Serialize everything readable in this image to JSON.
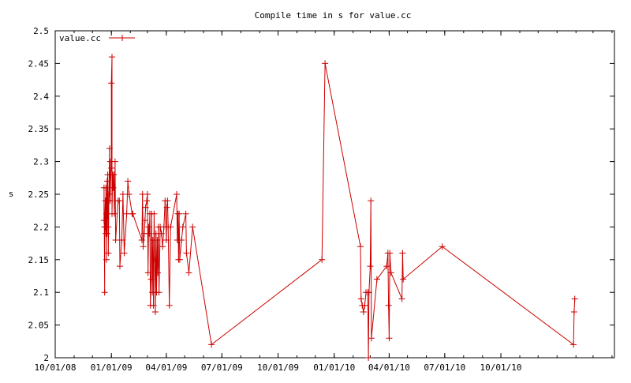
{
  "chart_data": {
    "type": "line",
    "title": "Compile time in s for value.cc",
    "xlabel": "",
    "ylabel": "s",
    "ylim": [
      2.0,
      2.5
    ],
    "xlim": [
      "2008-10-01",
      "2011-04-05"
    ],
    "x_tick_labels": [
      "10/01/08",
      "01/01/09",
      "04/01/09",
      "07/01/09",
      "10/01/09",
      "01/01/10",
      "04/01/10",
      "07/01/10",
      "10/01/10"
    ],
    "x_tick_dates": [
      "2008-10-01",
      "2009-01-01",
      "2009-04-01",
      "2009-07-01",
      "2009-10-01",
      "2010-01-01",
      "2010-04-01",
      "2010-07-01",
      "2010-10-01"
    ],
    "y_ticks": [
      2.0,
      2.05,
      2.1,
      2.15,
      2.2,
      2.25,
      2.3,
      2.35,
      2.4,
      2.45,
      2.5
    ],
    "y_tick_labels": [
      "2",
      "2.05",
      "2.1",
      "2.15",
      "2.2",
      "2.25",
      "2.3",
      "2.35",
      "2.4",
      "2.45",
      "2.5"
    ],
    "legend_position": "top-left",
    "grid": false,
    "series": [
      {
        "name": "value.cc",
        "color": "#cc0000",
        "marker": "plus",
        "points": [
          [
            "2008-12-20",
            2.21
          ],
          [
            "2008-12-20",
            2.26
          ],
          [
            "2008-12-21",
            2.1
          ],
          [
            "2008-12-21",
            2.2
          ],
          [
            "2008-12-22",
            2.24
          ],
          [
            "2008-12-22",
            2.2
          ],
          [
            "2008-12-23",
            2.19
          ],
          [
            "2008-12-23",
            2.26
          ],
          [
            "2008-12-24",
            2.15
          ],
          [
            "2008-12-24",
            2.22
          ],
          [
            "2008-12-25",
            2.27
          ],
          [
            "2008-12-25",
            2.19
          ],
          [
            "2008-12-26",
            2.24
          ],
          [
            "2008-12-26",
            2.28
          ],
          [
            "2008-12-27",
            2.2
          ],
          [
            "2008-12-27",
            2.16
          ],
          [
            "2008-12-28",
            2.25
          ],
          [
            "2008-12-28",
            2.24
          ],
          [
            "2008-12-29",
            2.32
          ],
          [
            "2008-12-29",
            2.25
          ],
          [
            "2008-12-30",
            2.3
          ],
          [
            "2008-12-30",
            2.24
          ],
          [
            "2008-12-31",
            2.28
          ],
          [
            "2009-01-01",
            2.29
          ],
          [
            "2009-01-01",
            2.42
          ],
          [
            "2009-01-02",
            2.46
          ],
          [
            "2009-01-02",
            2.22
          ],
          [
            "2009-01-03",
            2.28
          ],
          [
            "2009-01-04",
            2.26
          ],
          [
            "2009-01-05",
            2.28
          ],
          [
            "2009-01-06",
            2.22
          ],
          [
            "2009-01-07",
            2.3
          ],
          [
            "2009-01-08",
            2.18
          ],
          [
            "2009-01-12",
            2.24
          ],
          [
            "2009-01-14",
            2.24
          ],
          [
            "2009-01-15",
            2.14
          ],
          [
            "2009-01-18",
            2.18
          ],
          [
            "2009-01-20",
            2.25
          ],
          [
            "2009-01-22",
            2.16
          ],
          [
            "2009-01-26",
            2.22
          ],
          [
            "2009-01-28",
            2.27
          ],
          [
            "2009-01-30",
            2.25
          ],
          [
            "2009-02-04",
            2.22
          ],
          [
            "2009-02-05",
            2.22
          ],
          [
            "2009-02-20",
            2.18
          ],
          [
            "2009-02-21",
            2.25
          ],
          [
            "2009-02-22",
            2.17
          ],
          [
            "2009-02-24",
            2.19
          ],
          [
            "2009-02-25",
            2.21
          ],
          [
            "2009-02-26",
            2.23
          ],
          [
            "2009-02-28",
            2.24
          ],
          [
            "2009-03-01",
            2.25
          ],
          [
            "2009-03-02",
            2.13
          ],
          [
            "2009-03-03",
            2.2
          ],
          [
            "2009-03-04",
            2.19
          ],
          [
            "2009-03-05",
            2.22
          ],
          [
            "2009-03-06",
            2.08
          ],
          [
            "2009-03-07",
            2.12
          ],
          [
            "2009-03-08",
            2.22
          ],
          [
            "2009-03-09",
            2.1
          ],
          [
            "2009-03-10",
            2.18
          ],
          [
            "2009-03-11",
            2.08
          ],
          [
            "2009-03-12",
            2.22
          ],
          [
            "2009-03-13",
            2.15
          ],
          [
            "2009-03-14",
            2.07
          ],
          [
            "2009-03-15",
            2.19
          ],
          [
            "2009-03-16",
            2.1
          ],
          [
            "2009-03-17",
            2.18
          ],
          [
            "2009-03-18",
            2.13
          ],
          [
            "2009-03-19",
            2.2
          ],
          [
            "2009-03-20",
            2.1
          ],
          [
            "2009-03-22",
            2.2
          ],
          [
            "2009-03-24",
            2.19
          ],
          [
            "2009-03-26",
            2.17
          ],
          [
            "2009-03-28",
            2.2
          ],
          [
            "2009-03-30",
            2.24
          ],
          [
            "2009-04-01",
            2.18
          ],
          [
            "2009-04-02",
            2.23
          ],
          [
            "2009-04-03",
            2.24
          ],
          [
            "2009-04-04",
            2.2
          ],
          [
            "2009-04-06",
            2.08
          ],
          [
            "2009-04-08",
            2.2
          ],
          [
            "2009-04-18",
            2.25
          ],
          [
            "2009-04-19",
            2.18
          ],
          [
            "2009-04-20",
            2.22
          ],
          [
            "2009-04-21",
            2.15
          ],
          [
            "2009-04-22",
            2.22
          ],
          [
            "2009-04-23",
            2.15
          ],
          [
            "2009-04-26",
            2.18
          ],
          [
            "2009-04-28",
            2.2
          ],
          [
            "2009-05-03",
            2.22
          ],
          [
            "2009-05-04",
            2.16
          ],
          [
            "2009-05-08",
            2.13
          ],
          [
            "2009-05-14",
            2.2
          ],
          [
            "2009-06-14",
            2.02
          ],
          [
            "2009-12-12",
            2.15
          ],
          [
            "2009-12-17",
            2.45
          ],
          [
            "2010-02-13",
            2.17
          ],
          [
            "2010-02-14",
            2.09
          ],
          [
            "2010-02-16",
            2.08
          ],
          [
            "2010-02-18",
            2.07
          ],
          [
            "2010-02-20",
            2.08
          ],
          [
            "2010-02-22",
            2.1
          ],
          [
            "2010-02-25",
            2.1
          ],
          [
            "2010-02-26",
            2.0
          ],
          [
            "2010-02-27",
            2.1
          ],
          [
            "2010-03-01",
            2.14
          ],
          [
            "2010-03-02",
            2.24
          ],
          [
            "2010-03-03",
            2.03
          ],
          [
            "2010-03-12",
            2.12
          ],
          [
            "2010-03-28",
            2.14
          ],
          [
            "2010-03-30",
            2.16
          ],
          [
            "2010-03-31",
            2.08
          ],
          [
            "2010-04-01",
            2.03
          ],
          [
            "2010-04-02",
            2.16
          ],
          [
            "2010-04-04",
            2.13
          ],
          [
            "2010-04-22",
            2.09
          ],
          [
            "2010-04-23",
            2.16
          ],
          [
            "2010-04-24",
            2.12
          ],
          [
            "2010-06-27",
            2.17
          ],
          [
            "2011-01-28",
            2.02
          ],
          [
            "2011-01-29",
            2.07
          ],
          [
            "2011-01-30",
            2.09
          ]
        ]
      }
    ]
  }
}
